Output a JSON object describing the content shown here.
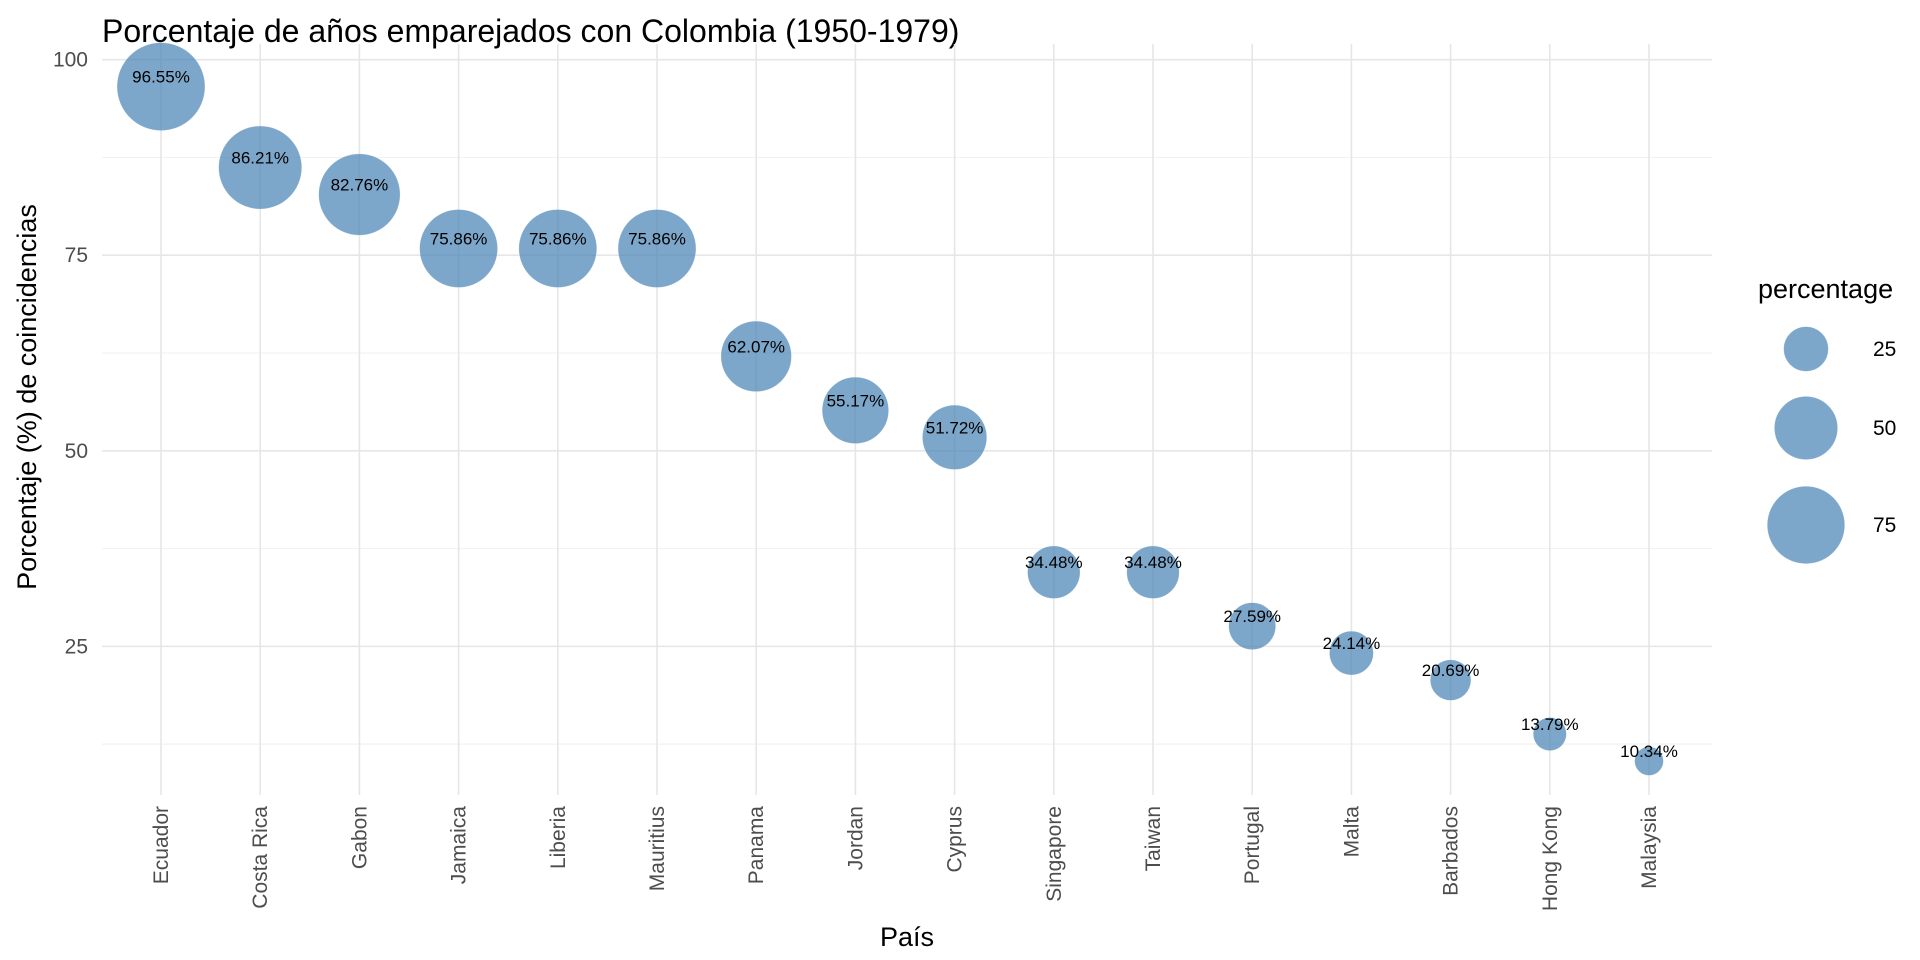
{
  "chart_data": {
    "type": "scatter",
    "title": "Porcentaje de años emparejados con Colombia (1950-1979)",
    "xlabel": "País",
    "ylabel": "Porcentaje (%) de coincidencias",
    "categories": [
      "Ecuador",
      "Costa Rica",
      "Gabon",
      "Jamaica",
      "Liberia",
      "Mauritius",
      "Panama",
      "Jordan",
      "Cyprus",
      "Singapore",
      "Taiwan",
      "Portugal",
      "Malta",
      "Barbados",
      "Hong Kong",
      "Malaysia"
    ],
    "values": [
      96.55,
      86.21,
      82.76,
      75.86,
      75.86,
      75.86,
      62.07,
      55.17,
      51.72,
      34.48,
      34.48,
      27.59,
      24.14,
      20.69,
      13.79,
      10.34
    ],
    "labels": [
      "96.55%",
      "86.21%",
      "82.76%",
      "75.86%",
      "75.86%",
      "75.86%",
      "62.07%",
      "55.17%",
      "51.72%",
      "34.48%",
      "34.48%",
      "27.59%",
      "24.14%",
      "20.69%",
      "13.79%",
      "10.34%"
    ],
    "ylim": [
      6,
      102
    ],
    "yticks": [
      25,
      50,
      75,
      100
    ],
    "ytick_labels": [
      "25",
      "50",
      "75",
      "100"
    ],
    "size_scale_range": [
      10.34,
      96.55
    ],
    "grid": true,
    "point_color": "#4682b4",
    "point_opacity": 0.7,
    "legend": {
      "title": "percentage",
      "position": "right",
      "values": [
        25,
        50,
        75
      ],
      "labels": [
        "25",
        "50",
        "75"
      ]
    }
  }
}
